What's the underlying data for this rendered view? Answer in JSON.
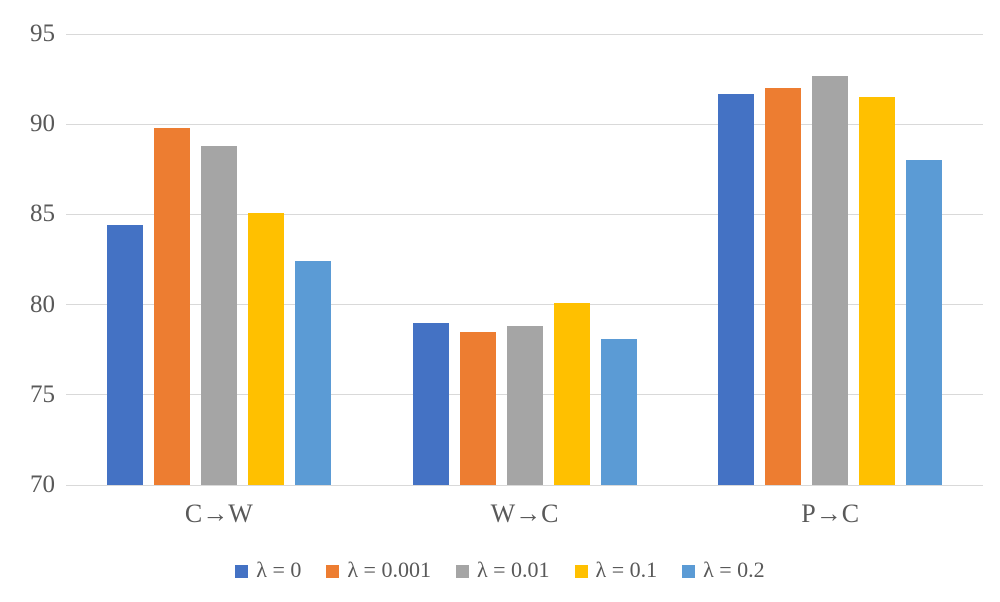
{
  "chart_data": {
    "type": "bar",
    "title": "",
    "xlabel": "",
    "ylabel": "",
    "categories": [
      "C→W",
      "W→C",
      "P→C"
    ],
    "series": [
      {
        "name": "λ = 0",
        "color": "#4472C4",
        "values": [
          84.4,
          79.0,
          91.7
        ]
      },
      {
        "name": "λ = 0.001",
        "color": "#ED7D31",
        "values": [
          89.8,
          78.5,
          92.0
        ]
      },
      {
        "name": "λ = 0.01",
        "color": "#A5A5A5",
        "values": [
          88.8,
          78.8,
          92.7
        ]
      },
      {
        "name": "λ = 0.1",
        "color": "#FFC000",
        "values": [
          85.1,
          80.1,
          91.5
        ]
      },
      {
        "name": "λ = 0.2",
        "color": "#5B9BD5",
        "values": [
          82.4,
          78.1,
          88.0
        ]
      }
    ],
    "ylim": [
      70,
      95
    ],
    "yticks": [
      "70",
      "75",
      "80",
      "85",
      "90",
      "95"
    ],
    "grid": true,
    "legend_position": "bottom",
    "colors": {
      "gridline": "#D9D9D9",
      "axis_text": "#595959",
      "background": "#FFFFFF"
    }
  }
}
